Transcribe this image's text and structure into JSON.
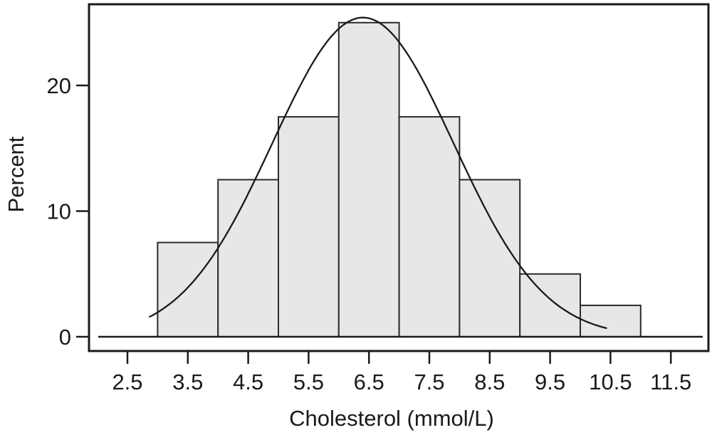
{
  "figure": {
    "background": "#ffffff"
  },
  "chart_data": {
    "type": "bar",
    "subtype": "histogram-with-normal-curve",
    "title": "",
    "xlabel": "Cholesterol (mmol/L)",
    "ylabel": "Percent",
    "bin_edges": [
      3,
      4,
      5,
      6,
      7,
      8,
      9,
      10,
      11
    ],
    "bin_centers": [
      3.5,
      4.5,
      5.5,
      6.5,
      7.5,
      8.5,
      9.5,
      10.5
    ],
    "values": [
      7.5,
      12.5,
      17.5,
      25,
      17.5,
      12.5,
      5,
      2.5
    ],
    "x_ticks": [
      2.5,
      3.5,
      4.5,
      5.5,
      6.5,
      7.5,
      8.5,
      9.5,
      10.5,
      11.5
    ],
    "x_tick_labels": [
      "2.5",
      "3.5",
      "4.5",
      "5.5",
      "6.5",
      "7.5",
      "8.5",
      "9.5",
      "10.5",
      "11.5"
    ],
    "y_ticks": [
      0,
      10,
      20
    ],
    "y_tick_labels": [
      "0",
      "10",
      "20"
    ],
    "xlim": [
      1.86,
      12.12
    ],
    "ylim": [
      0,
      26.5
    ],
    "grid": false,
    "legend": "none",
    "normal_curve": {
      "mean": 6.4,
      "sd": 1.5,
      "peak_percent": 25.4,
      "x_start": 2.87,
      "x_end": 10.43
    },
    "colors": {
      "bar_fill": "#e7e7e7",
      "bar_stroke": "#2b2b2b",
      "curve": "#1a1a1a",
      "axis": "#1a1a1a",
      "frame": "#1a1a1a"
    }
  }
}
